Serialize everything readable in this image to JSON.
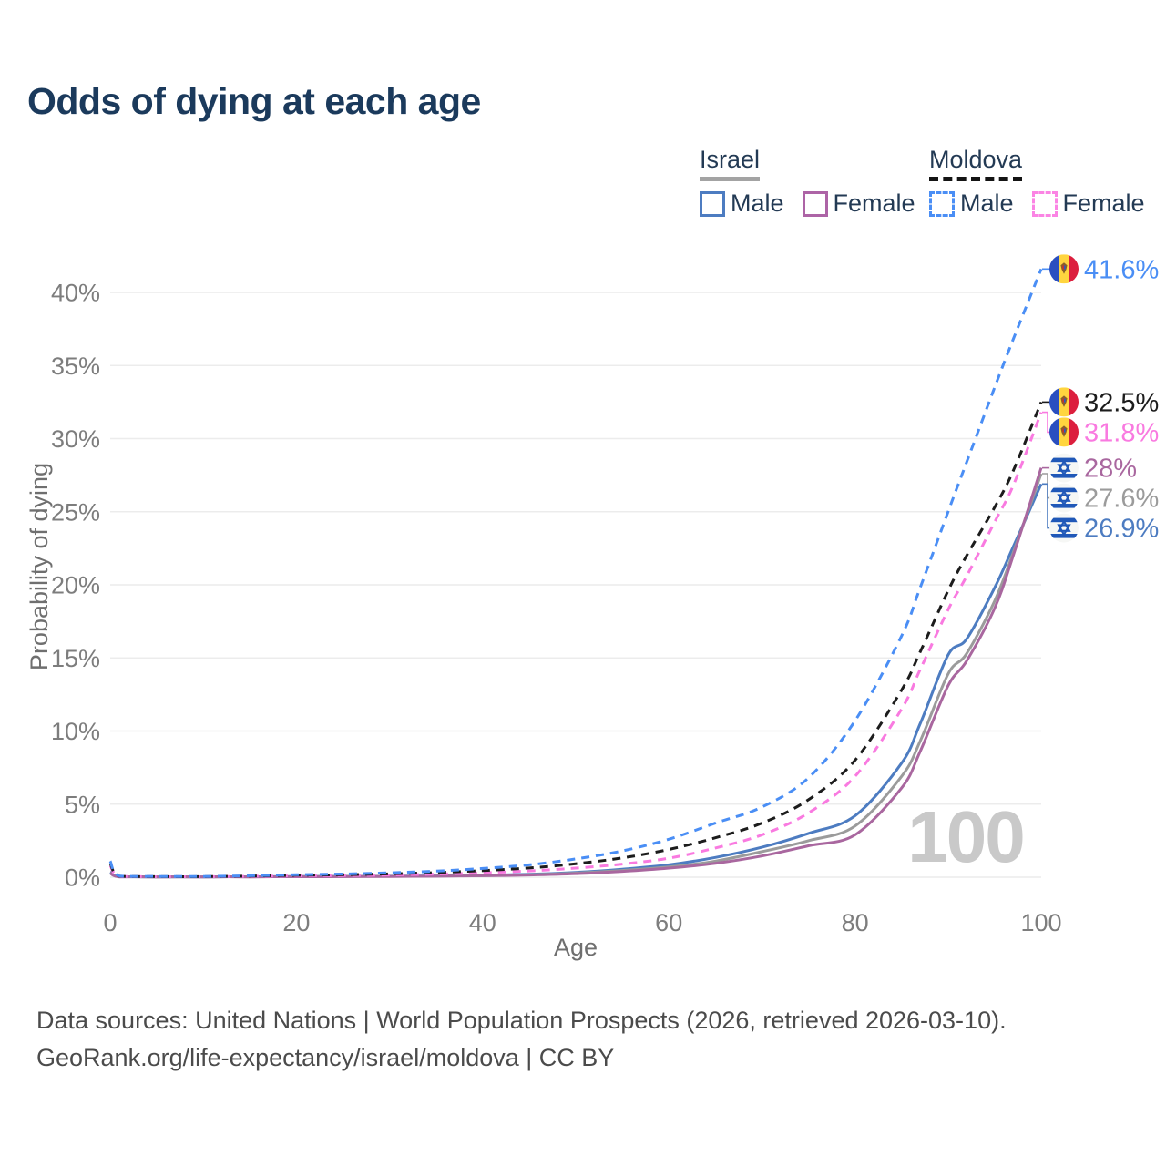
{
  "title": "Odds of dying at each age",
  "legend": {
    "groups": [
      {
        "country": "Israel",
        "line_style": "solid",
        "underline_color": "#a3a3a3",
        "items": [
          {
            "label": "Male",
            "color": "#4d7cc1"
          },
          {
            "label": "Female",
            "color": "#ad64a6"
          }
        ]
      },
      {
        "country": "Moldova",
        "line_style": "dashed",
        "underline_color": "#141414",
        "items": [
          {
            "label": "Male",
            "color": "#4a8ef5"
          },
          {
            "label": "Female",
            "color": "#fb84e4"
          }
        ]
      }
    ]
  },
  "chart_data": {
    "type": "line",
    "title": "Odds of dying at each age",
    "xlabel": "Age",
    "ylabel": "Probability of dying",
    "x_ticks": [
      0,
      20,
      40,
      60,
      80,
      100
    ],
    "y_tick_values": [
      0,
      5,
      10,
      15,
      20,
      25,
      30,
      35,
      40
    ],
    "y_tick_labels": [
      "0%",
      "5%",
      "10%",
      "15%",
      "20%",
      "25%",
      "30%",
      "35%",
      "40%"
    ],
    "xlim": [
      0,
      100
    ],
    "ylim": [
      0,
      43
    ],
    "grid": "horizontal",
    "legend_position": "top-right",
    "watermark": "100",
    "ages": [
      0,
      1,
      5,
      10,
      15,
      20,
      25,
      30,
      35,
      40,
      45,
      50,
      55,
      60,
      65,
      70,
      75,
      80,
      85,
      87,
      90,
      92,
      95,
      97,
      100
    ],
    "unit": "percent",
    "series": [
      {
        "id": "israel_male",
        "name": "Israel Male",
        "flag": "israel",
        "color": "#4d7cc1",
        "dash": false,
        "end_label": "26.9%",
        "values": [
          0.35,
          0.03,
          0.01,
          0.01,
          0.03,
          0.05,
          0.06,
          0.07,
          0.09,
          0.13,
          0.2,
          0.33,
          0.55,
          0.85,
          1.35,
          2.05,
          3.0,
          4.2,
          7.8,
          10.5,
          15.2,
          16.3,
          19.8,
          22.6,
          26.9
        ]
      },
      {
        "id": "israel_total",
        "name": "Israel",
        "flag": "israel",
        "color": "#9b9b9b",
        "dash": false,
        "end_label": "27.6%",
        "values": [
          0.3,
          0.03,
          0.01,
          0.01,
          0.025,
          0.04,
          0.05,
          0.06,
          0.08,
          0.11,
          0.17,
          0.28,
          0.46,
          0.7,
          1.1,
          1.75,
          2.5,
          3.5,
          6.9,
          9.3,
          13.9,
          15.3,
          18.9,
          22.2,
          27.6
        ]
      },
      {
        "id": "israel_female",
        "name": "Israel Female",
        "flag": "israel",
        "color": "#a9679f",
        "dash": false,
        "end_label": "28%",
        "values": [
          0.28,
          0.02,
          0.01,
          0.01,
          0.02,
          0.03,
          0.04,
          0.05,
          0.07,
          0.1,
          0.15,
          0.24,
          0.4,
          0.62,
          0.95,
          1.45,
          2.15,
          2.9,
          6.1,
          8.6,
          13.1,
          14.8,
          18.4,
          22.0,
          28.0
        ]
      },
      {
        "id": "moldova_female",
        "name": "Moldova Female",
        "flag": "moldova",
        "color": "#f97ae0",
        "dash": true,
        "end_label": "31.8%",
        "values": [
          0.8,
          0.06,
          0.03,
          0.03,
          0.06,
          0.09,
          0.11,
          0.15,
          0.21,
          0.3,
          0.43,
          0.62,
          0.9,
          1.3,
          2.0,
          2.9,
          4.4,
          6.9,
          11.5,
          14.2,
          18.3,
          20.6,
          24.3,
          26.8,
          31.8
        ]
      },
      {
        "id": "moldova_total",
        "name": "Moldova",
        "flag": "moldova",
        "color": "#1c1c1c",
        "dash": true,
        "end_label": "32.5%",
        "values": [
          0.95,
          0.07,
          0.04,
          0.04,
          0.08,
          0.13,
          0.17,
          0.23,
          0.32,
          0.45,
          0.63,
          0.92,
          1.32,
          1.9,
          2.7,
          3.7,
          5.3,
          8.0,
          12.8,
          15.4,
          19.6,
          22.0,
          25.3,
          27.8,
          32.5
        ]
      },
      {
        "id": "moldova_male",
        "name": "Moldova Male",
        "flag": "moldova",
        "color": "#4a8ef5",
        "dash": true,
        "end_label": "41.6%",
        "values": [
          1.1,
          0.08,
          0.05,
          0.05,
          0.1,
          0.17,
          0.22,
          0.3,
          0.42,
          0.6,
          0.85,
          1.25,
          1.8,
          2.6,
          3.7,
          4.8,
          6.8,
          10.7,
          16.5,
          19.8,
          25.0,
          28.4,
          33.5,
          36.8,
          41.6
        ]
      }
    ]
  },
  "footer": {
    "line1": "Data sources: United Nations | World Population Prospects (2026, retrieved 2026-03-10).",
    "line2": "GeoRank.org/life-expectancy/israel/moldova | CC BY"
  }
}
